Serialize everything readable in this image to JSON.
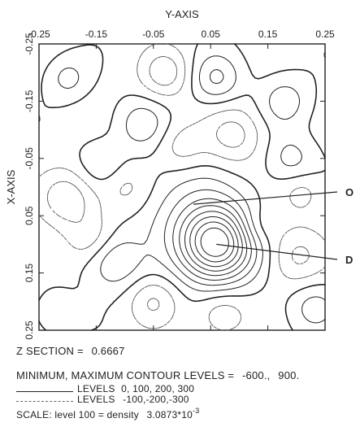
{
  "chart_data": {
    "type": "contour",
    "xlabel": "Y-AXIS",
    "ylabel": "X-AXIS",
    "x_ticks": [
      "-0.25",
      "-0.15",
      "-0.05",
      "0.05",
      "0.15",
      "0.25"
    ],
    "y_ticks": [
      "-0.25",
      "-0.15",
      "-0.05",
      "0.05",
      "0.15",
      "0.25"
    ],
    "xlim": [
      -0.25,
      0.25
    ],
    "ylim": [
      -0.25,
      0.25
    ],
    "annotations": [
      {
        "label": "O",
        "x": 0.02,
        "y": 0.03
      },
      {
        "label": "D",
        "x": 0.06,
        "y": 0.1
      }
    ],
    "peak": {
      "y_axis": 0.06,
      "x_axis": 0.1,
      "label": "D"
    },
    "z_section_label": "Z SECTION =",
    "z_section_value": "0.6667",
    "min_max_label": "MINIMUM, MAXIMUM CONTOUR LEVELS =",
    "min_level": "-600.",
    "max_level": "900.",
    "positive_levels_label": "LEVELS",
    "positive_levels": "0, 100, 200, 300",
    "negative_levels_label": "LEVELS",
    "negative_levels": "-100,-200,-300",
    "scale_label": "SCALE: level 100 = density",
    "scale_mantissa": "3.0873*10",
    "scale_exponent": "-3",
    "colors": {
      "solid": "#222222",
      "dashed": "#555555"
    }
  }
}
